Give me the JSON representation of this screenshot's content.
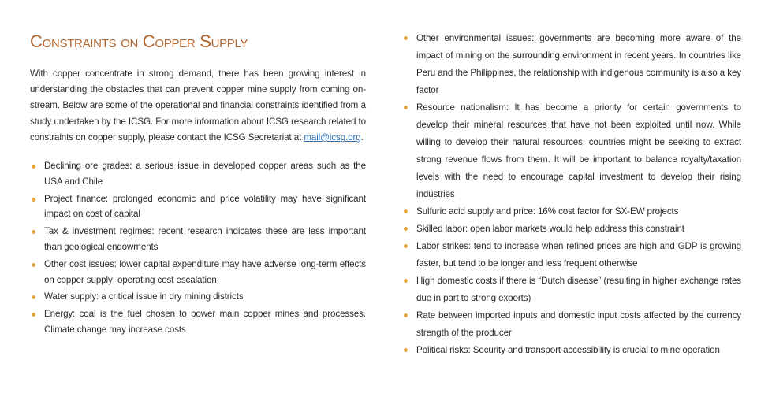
{
  "title": "Constraints on Copper Supply",
  "intro": {
    "text": "With copper concentrate in strong demand, there has been growing interest in understanding the obstacles that can prevent copper mine supply from coming on-stream. Below are some of the operational and financial constraints identified from a study undertaken by the ICSG. For more information about ICSG research related to constraints on copper supply, please contact the ICSG Secretariat at ",
    "email": "mail@icsg.org",
    "end": "."
  },
  "bullet_color": "#e8a640",
  "left_items": [
    "Declining ore grades: a serious issue in developed copper areas such as the USA and Chile",
    "Project finance: prolonged economic and price volatility may have significant impact on cost of capital",
    "Tax & investment regimes: recent research indicates these are less important than geological endowments",
    "Other cost issues: lower capital expenditure may have adverse long-term effects on copper supply; operating cost escalation",
    "Water supply: a critical issue in dry mining districts",
    "Energy: coal is the fuel chosen to power main copper mines and processes. Climate change may increase costs"
  ],
  "right_items": [
    "Other environmental issues: governments are becoming more aware of the impact of mining on the surrounding environment in recent years. In countries like Peru and the Philippines, the relationship with indigenous community is also a key factor",
    "Resource nationalism: It has become a priority for certain governments to develop their mineral resources that have not been exploited until now. While willing to develop their natural resources, countries might be seeking to extract strong revenue flows from them. It will be important to balance royalty/taxation levels with the need to encourage capital investment to develop their rising industries",
    "Sulfuric acid supply and price: 16% cost factor for SX-EW projects",
    "Skilled labor: open labor markets would help address this constraint",
    "Labor strikes: tend to increase when refined prices are high and GDP is growing faster, but tend to be longer and less frequent otherwise",
    "High domestic costs if there is “Dutch disease” (resulting in higher exchange rates due in part to strong exports)",
    "Rate between imported inputs and domestic input costs affected by the currency strength of the producer",
    "Political risks: Security and transport accessibility is crucial to mine operation"
  ]
}
